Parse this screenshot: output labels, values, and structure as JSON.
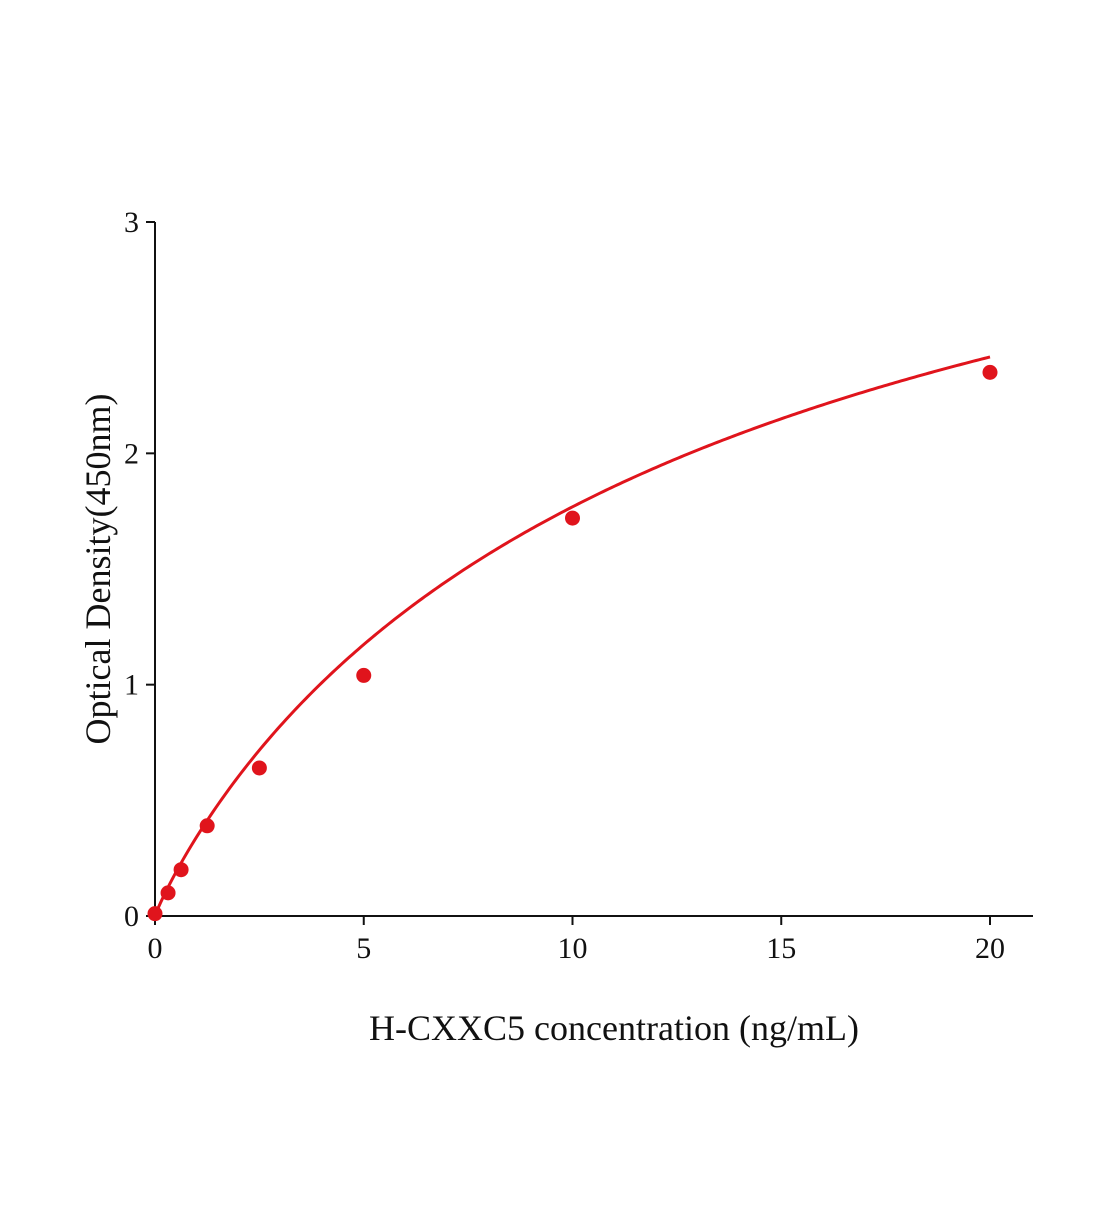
{
  "chart_data": {
    "type": "scatter",
    "title": "",
    "xlabel": "H-CXXC5 concentration (ng/mL)",
    "ylabel": "Optical Density(450nm)",
    "xlim": [
      0,
      21
    ],
    "ylim": [
      0,
      3
    ],
    "x_ticks": [
      0,
      5,
      10,
      15,
      20
    ],
    "x_tick_labels": [
      "0",
      "5",
      "10",
      "15",
      "20"
    ],
    "y_ticks": [
      0,
      1,
      2,
      3
    ],
    "y_tick_labels": [
      "0",
      "1",
      "2",
      "3"
    ],
    "grid": false,
    "legend": "none",
    "series": [
      {
        "points": [
          {
            "x": 0,
            "y": 0.01
          },
          {
            "x": 0.313,
            "y": 0.1
          },
          {
            "x": 0.625,
            "y": 0.2
          },
          {
            "x": 1.25,
            "y": 0.39
          },
          {
            "x": 2.5,
            "y": 0.64
          },
          {
            "x": 5,
            "y": 1.04
          },
          {
            "x": 10,
            "y": 1.72
          },
          {
            "x": 20,
            "y": 2.35
          }
        ],
        "color": "#e0141c",
        "fit": {
          "kind": "four-parameter logistic",
          "a": 0,
          "d": 4.1,
          "c": 13.5,
          "b": 0.92,
          "x_range": [
            0,
            20
          ]
        }
      }
    ]
  }
}
